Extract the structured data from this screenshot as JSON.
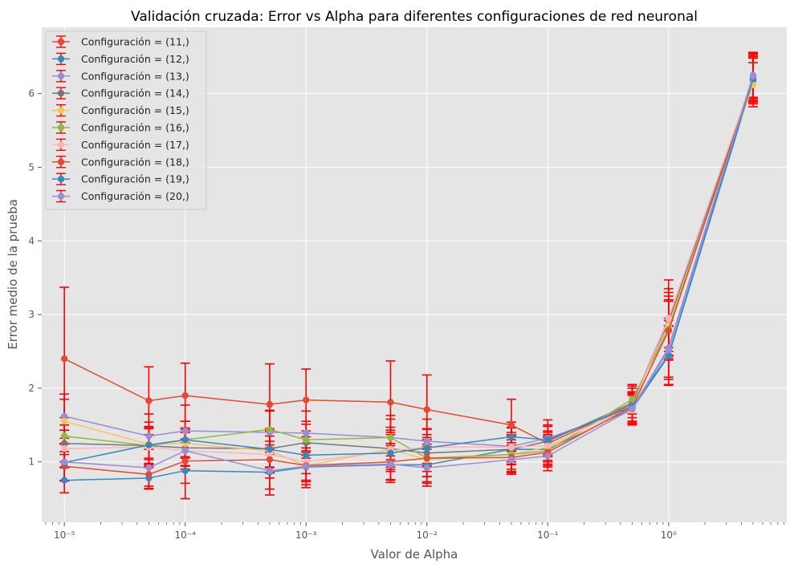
{
  "chart_data": {
    "type": "line",
    "title": "Validación cruzada: Error  vs Alpha para diferentes configuraciones de red neuronal",
    "xlabel": "Valor de Alpha",
    "ylabel": "Error medio de la prueba",
    "xscale": "log",
    "xlim": [
      6.5e-06,
      9.5
    ],
    "ylim": [
      0.18,
      6.9
    ],
    "grid": true,
    "legend_position": "top-left",
    "errorbar_color": "#ff0000",
    "x": [
      1e-05,
      5e-05,
      0.0001,
      0.0005,
      0.001,
      0.005,
      0.01,
      0.05,
      0.1,
      0.5,
      1,
      5
    ],
    "x_tick_labels": [
      "10⁻⁵",
      "10⁻⁴",
      "10⁻³",
      "10⁻²",
      "10⁻¹",
      "10⁰"
    ],
    "x_tick_values": [
      1e-05,
      0.0001,
      0.001,
      0.01,
      0.1,
      1
    ],
    "y_ticks": [
      1,
      2,
      3,
      4,
      5,
      6
    ],
    "series": [
      {
        "name": "Configuración = (11,)",
        "color": "#E24A33",
        "values": [
          2.4,
          1.83,
          1.9,
          1.78,
          1.84,
          1.81,
          1.71,
          1.5,
          1.25,
          1.78,
          2.95,
          6.21
        ],
        "errors": [
          0.97,
          0.46,
          0.44,
          0.55,
          0.42,
          0.56,
          0.47,
          0.35,
          0.25,
          0.25,
          0.52,
          0.35
        ]
      },
      {
        "name": "Configuración = (12,)",
        "color": "#348ABD",
        "values": [
          0.75,
          0.78,
          0.88,
          0.86,
          0.93,
          0.96,
          0.96,
          1.17,
          1.17,
          1.72,
          2.44,
          6.18
        ],
        "errors": [
          0.17,
          0.14,
          0.38,
          0.31,
          0.2,
          0.2,
          0.25,
          0.3,
          0.2,
          0.2,
          0.4,
          0.3
        ]
      },
      {
        "name": "Configuración = (13,)",
        "color": "#988ED5",
        "values": [
          1.62,
          1.35,
          1.42,
          1.4,
          1.39,
          1.33,
          1.28,
          1.21,
          1.32,
          1.73,
          2.55,
          6.25
        ],
        "errors": [
          0.3,
          0.3,
          0.35,
          0.3,
          0.3,
          0.3,
          0.3,
          0.25,
          0.25,
          0.2,
          0.4,
          0.3
        ]
      },
      {
        "name": "Configuración = (14,)",
        "color": "#777777",
        "values": [
          1.25,
          1.22,
          1.19,
          1.18,
          1.26,
          1.18,
          1.12,
          1.17,
          1.28,
          1.8,
          2.9,
          6.2
        ],
        "errors": [
          0.25,
          0.25,
          0.25,
          0.25,
          0.25,
          0.25,
          0.25,
          0.2,
          0.2,
          0.2,
          0.4,
          0.3
        ]
      },
      {
        "name": "Configuración = (15,)",
        "color": "#FBC15E",
        "values": [
          1.55,
          1.24,
          1.25,
          1.15,
          0.95,
          1.17,
          1.03,
          1.1,
          1.2,
          1.7,
          2.85,
          6.12
        ],
        "errors": [
          0.3,
          0.3,
          0.3,
          0.3,
          0.3,
          0.3,
          0.3,
          0.25,
          0.2,
          0.2,
          0.4,
          0.3
        ]
      },
      {
        "name": "Configuración = (16,)",
        "color": "#8EBA42",
        "values": [
          1.35,
          1.22,
          1.3,
          1.44,
          1.3,
          1.33,
          1.05,
          1.1,
          1.15,
          1.85,
          2.8,
          6.2
        ],
        "errors": [
          0.25,
          0.25,
          0.25,
          0.25,
          0.25,
          0.25,
          0.25,
          0.2,
          0.2,
          0.2,
          0.4,
          0.3
        ]
      },
      {
        "name": "Configuración = (17,)",
        "color": "#FFB5B8",
        "values": [
          1.18,
          1.2,
          1.15,
          1.1,
          1.0,
          1.15,
          1.2,
          1.2,
          1.22,
          1.75,
          2.95,
          6.22
        ],
        "errors": [
          0.25,
          0.25,
          0.25,
          0.25,
          0.25,
          0.25,
          0.25,
          0.2,
          0.2,
          0.2,
          0.4,
          0.3
        ]
      },
      {
        "name": "Configuración = (18,)",
        "color": "#E24A33",
        "values": [
          0.94,
          0.83,
          1.01,
          1.03,
          0.95,
          1.0,
          1.05,
          1.06,
          1.13,
          1.75,
          2.78,
          6.2
        ],
        "errors": [
          0.2,
          0.2,
          0.3,
          0.25,
          0.2,
          0.25,
          0.25,
          0.2,
          0.2,
          0.2,
          0.4,
          0.3
        ]
      },
      {
        "name": "Configuración = (19,)",
        "color": "#348ABD",
        "values": [
          0.99,
          1.23,
          1.3,
          1.17,
          1.09,
          1.12,
          1.19,
          1.34,
          1.3,
          1.75,
          2.45,
          6.2
        ],
        "errors": [
          0.25,
          0.25,
          0.25,
          0.25,
          0.25,
          0.25,
          0.25,
          0.2,
          0.2,
          0.2,
          0.4,
          0.3
        ]
      },
      {
        "name": "Configuración = (20,)",
        "color": "#988ED5",
        "values": [
          1.0,
          0.92,
          1.15,
          0.88,
          0.94,
          0.97,
          0.92,
          1.03,
          1.08,
          1.72,
          2.52,
          6.24
        ],
        "errors": [
          0.25,
          0.25,
          0.25,
          0.25,
          0.25,
          0.25,
          0.25,
          0.2,
          0.2,
          0.2,
          0.4,
          0.3
        ]
      }
    ]
  }
}
